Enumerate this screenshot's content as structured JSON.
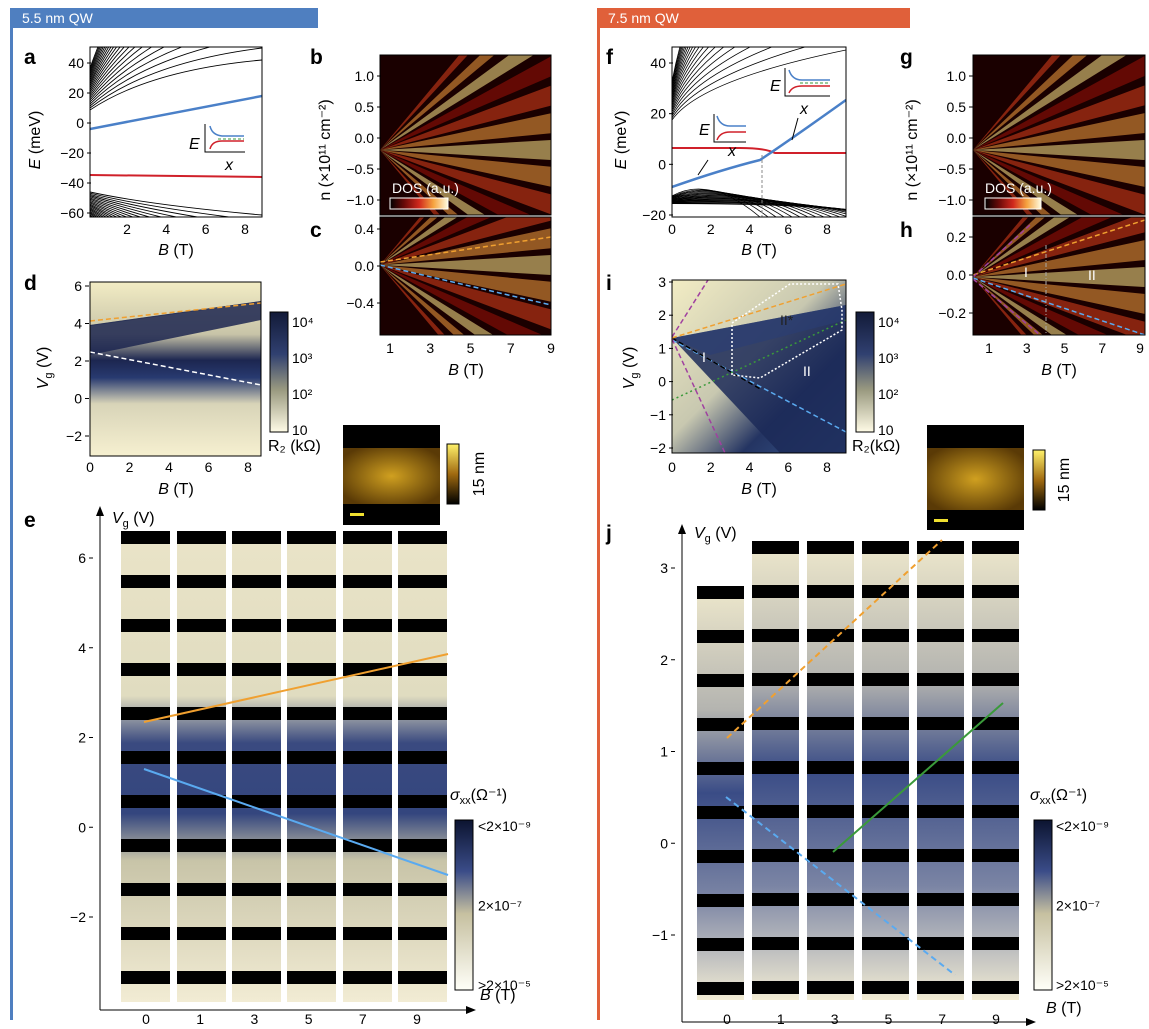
{
  "left": {
    "header": "5.5 nm QW",
    "header_color": "#4f7fc0",
    "a": {
      "label": "a",
      "ylabel_var": "E",
      "ylabel_unit": "(meV)",
      "xlabel_var": "B",
      "xlabel_unit": "(T)",
      "yticks": [
        "40",
        "20",
        "0",
        "−20",
        "−40",
        "−60"
      ],
      "xticks": [
        "2",
        "4",
        "6",
        "8"
      ],
      "inset_e": "E",
      "inset_x": "x"
    },
    "b": {
      "label": "b",
      "ylabel": "n (×10¹¹ cm⁻²)",
      "yticks": [
        "1.0",
        "0.5",
        "0.0",
        "−0.5",
        "−1.0"
      ],
      "cbar_label": "DOS (a.u.)"
    },
    "c": {
      "label": "c",
      "yticks": [
        "0.4",
        "0.0",
        "−0.4"
      ],
      "xticks": [
        "1",
        "3",
        "5",
        "7",
        "9"
      ],
      "xlabel_var": "B",
      "xlabel_unit": "(T)"
    },
    "d": {
      "label": "d",
      "ylabel": "V",
      "ylabel_sub": "g",
      "ylabel_unit": "(V)",
      "yticks": [
        "6",
        "4",
        "2",
        "0",
        "−2"
      ],
      "xticks": [
        "0",
        "2",
        "4",
        "6",
        "8"
      ],
      "xlabel_var": "B",
      "xlabel_unit": "(T)",
      "cbar_ticks": [
        "10⁴",
        "10³",
        "10²",
        "10"
      ],
      "cbar_label": "R₂ (kΩ)"
    },
    "afm": {
      "scale_label": "15 nm"
    },
    "e": {
      "label": "e",
      "axis_v": "V",
      "axis_v_sub": "g",
      "axis_v_unit": "(V)",
      "yticks": [
        "6",
        "4",
        "2",
        "0",
        "−2"
      ],
      "xticks": [
        "0",
        "1",
        "3",
        "5",
        "7",
        "9"
      ],
      "axis_b": "B",
      "axis_b_unit": "(T)",
      "cbar_title": "σ",
      "cbar_title_sub": "xx",
      "cbar_title_unit": "(Ω⁻¹)",
      "cbar_ticks": [
        "<2×10⁻⁹",
        "2×10⁻⁷",
        ">2×10⁻⁵"
      ]
    }
  },
  "right": {
    "header": "7.5 nm QW",
    "header_color": "#e0603a",
    "f": {
      "label": "f",
      "ylabel_var": "E",
      "ylabel_unit": "(meV)",
      "xlabel_var": "B",
      "xlabel_unit": "(T)",
      "yticks": [
        "40",
        "20",
        "0",
        "−20"
      ],
      "xticks": [
        "0",
        "2",
        "4",
        "6",
        "8"
      ],
      "inset_e": "E",
      "inset_x": "x"
    },
    "g": {
      "label": "g",
      "ylabel": "n (×10¹¹ cm⁻²)",
      "yticks": [
        "1.0",
        "0.5",
        "0.0",
        "−0.5",
        "−1.0"
      ],
      "cbar_label": "DOS (a.u.)"
    },
    "h": {
      "label": "h",
      "yticks": [
        "0.2",
        "0.0",
        "−0.2"
      ],
      "xticks": [
        "1",
        "3",
        "5",
        "7",
        "9"
      ],
      "xlabel_var": "B",
      "xlabel_unit": "(T)",
      "region_1": "I",
      "region_2": "II"
    },
    "i": {
      "label": "i",
      "ylabel": "V",
      "ylabel_sub": "g",
      "ylabel_unit": "(V)",
      "yticks": [
        "3",
        "2",
        "1",
        "0",
        "−1",
        "−2"
      ],
      "xticks": [
        "0",
        "2",
        "4",
        "6",
        "8"
      ],
      "xlabel_var": "B",
      "xlabel_unit": "(T)",
      "region_1": "I",
      "region_2": "II",
      "region_3": "II*",
      "cbar_ticks": [
        "10⁴",
        "10³",
        "10²",
        "10"
      ],
      "cbar_label": "R₂(kΩ)"
    },
    "afm": {
      "scale_label": "15 nm"
    },
    "j": {
      "label": "j",
      "axis_v": "V",
      "axis_v_sub": "g",
      "axis_v_unit": "(V)",
      "yticks": [
        "3",
        "2",
        "1",
        "0",
        "−1"
      ],
      "xticks": [
        "0",
        "1",
        "3",
        "5",
        "7",
        "9"
      ],
      "axis_b": "B",
      "axis_b_unit": "(T)",
      "cbar_title": "σ",
      "cbar_title_sub": "xx",
      "cbar_title_unit": "(Ω⁻¹)",
      "cbar_ticks": [
        "<2×10⁻⁹",
        "2×10⁻⁷",
        ">2×10⁻⁵"
      ]
    }
  },
  "colors": {
    "orange_line": "#f0a030",
    "blue_line": "#5aaaf0",
    "green_line": "#3a9a3a",
    "purple_line": "#a040a0",
    "red_band": "#d0202a",
    "blue_band": "#4a80c8"
  }
}
